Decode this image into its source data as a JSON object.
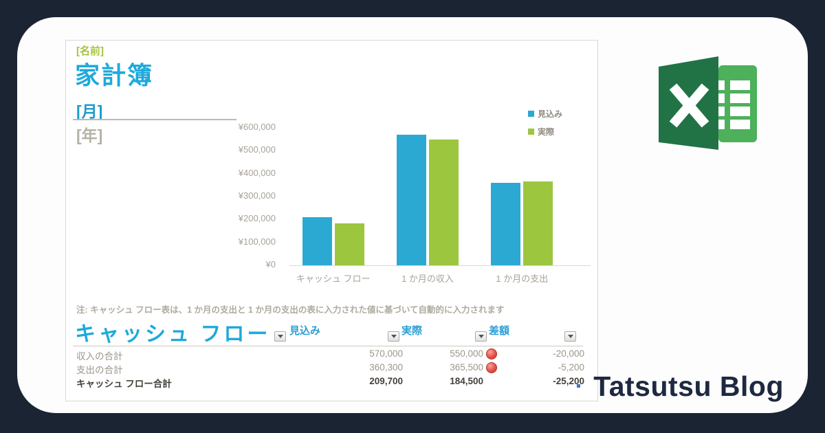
{
  "page": {
    "background": "#1B2433",
    "card_color": "#FDFDFE"
  },
  "brand": {
    "blog_title": "Tatsutsu Blog",
    "excel_logo": {
      "icon": "excel-logo",
      "dark_green": "#217346",
      "light_green": "#4DB05A",
      "letter": "X"
    }
  },
  "sheet": {
    "name_placeholder": "[名前]",
    "title": "家計簿",
    "month_placeholder": "[月]",
    "year_placeholder": "[年]",
    "note": "注: キャッシュ フロー表は、1 か月の支出と 1 か月の支出の表に入力された値に基づいて自動的に入力されます"
  },
  "chart_data": {
    "type": "bar",
    "title": "",
    "categories": [
      "キャッシュ フロー",
      "1 か月の収入",
      "1 か月の支出"
    ],
    "series": [
      {
        "name": "見込み",
        "color": "#2BA9D2",
        "values": [
          209700,
          570000,
          360300
        ]
      },
      {
        "name": "実際",
        "color": "#9DC63F",
        "values": [
          184500,
          550000,
          365500
        ]
      }
    ],
    "ylim": [
      0,
      600000
    ],
    "y_tick_labels": [
      "¥600,000",
      "¥500,000",
      "¥400,000",
      "¥300,000",
      "¥200,000",
      "¥100,000",
      "¥0"
    ],
    "xlabel": "",
    "ylabel": "",
    "grid": false,
    "legend_position": "top-right",
    "currency": "JPY"
  },
  "table": {
    "heading": "キャッシュ フロー",
    "columns": [
      "見込み",
      "実際",
      "差額"
    ],
    "filter_icon": "dropdown-arrow",
    "rows": [
      {
        "label": "収入の合計",
        "estimate": "570,000",
        "actual": "550,000",
        "diff": "-20,000",
        "indicator": "red-circle",
        "bold": false
      },
      {
        "label": "支出の合計",
        "estimate": "360,300",
        "actual": "365,500",
        "diff": "-5,200",
        "indicator": "red-circle",
        "bold": false
      },
      {
        "label": "キャッシュ フロー合計",
        "estimate": "209,700",
        "actual": "184,500",
        "diff": "-25,200",
        "indicator": "",
        "bold": true
      }
    ]
  },
  "colors": {
    "accent_cyan": "#1FA9DB",
    "month_blue": "#1B9DC9",
    "name_green": "#A5C43F",
    "axis_gray": "#A7A299",
    "note_gray": "#B0ABA0",
    "row_gray": "#9B968B",
    "row_dark": "#45413A",
    "indicator_red": "#E4514B",
    "handle_blue": "#4472C4"
  }
}
